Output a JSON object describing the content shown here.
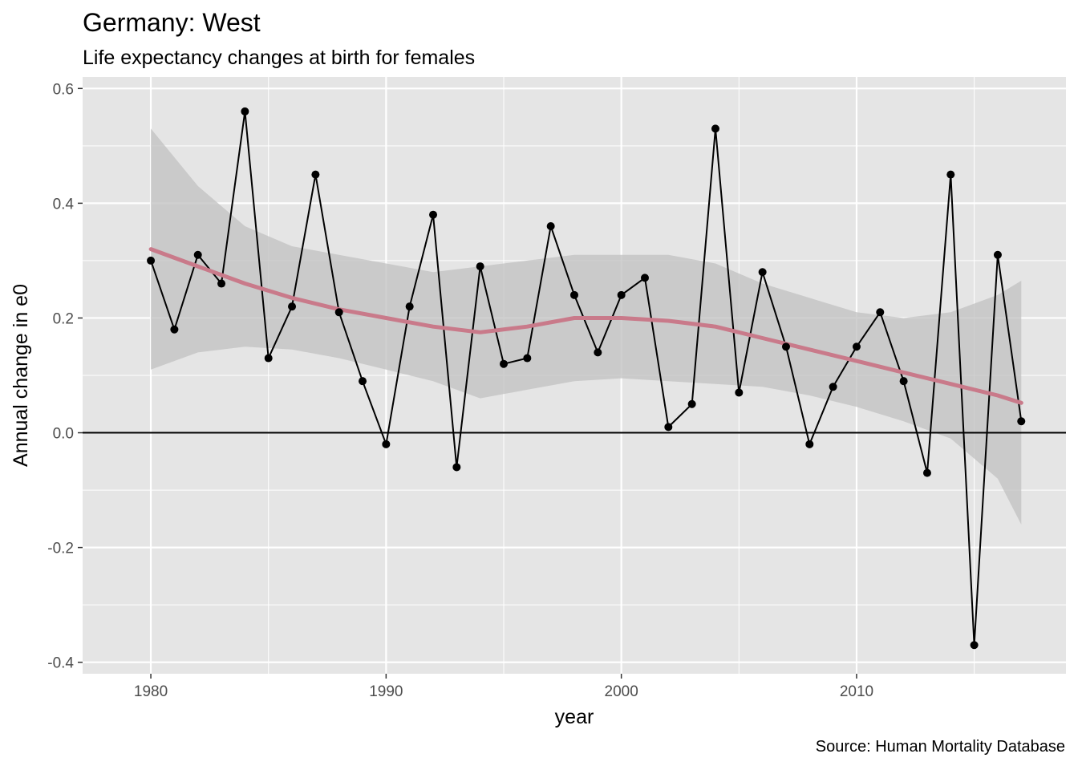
{
  "chart_data": {
    "type": "line",
    "title": "Germany: West",
    "subtitle": "Life expectancy changes at birth for females",
    "caption": "Source: Human Mortality Database",
    "xlabel": "year",
    "ylabel": "Annual change in e0",
    "xlim": [
      1977.1,
      2018.9
    ],
    "ylim": [
      -0.42,
      0.62
    ],
    "x_ticks": [
      1980,
      1990,
      2000,
      2010
    ],
    "x_tick_labels": [
      "1980",
      "1990",
      "2000",
      "2010"
    ],
    "y_ticks": [
      -0.4,
      -0.2,
      0.0,
      0.2,
      0.4,
      0.6
    ],
    "y_tick_labels": [
      "-0.4",
      "-0.2",
      "0.0",
      "0.2",
      "0.4",
      "0.6"
    ],
    "grid": true,
    "reference_line": 0,
    "series": [
      {
        "type": "line+points",
        "color": "#000000",
        "x": [
          1980,
          1981,
          1982,
          1983,
          1984,
          1985,
          1986,
          1987,
          1988,
          1989,
          1990,
          1991,
          1992,
          1993,
          1994,
          1995,
          1996,
          1997,
          1998,
          1999,
          2000,
          2001,
          2002,
          2003,
          2004,
          2005,
          2006,
          2007,
          2008,
          2009,
          2010,
          2011,
          2012,
          2013,
          2014,
          2015,
          2016,
          2017
        ],
        "y": [
          0.3,
          0.18,
          0.31,
          0.26,
          0.56,
          0.13,
          0.22,
          0.45,
          0.21,
          0.09,
          -0.02,
          0.22,
          0.38,
          -0.06,
          0.29,
          0.12,
          0.13,
          0.36,
          0.24,
          0.14,
          0.24,
          0.27,
          0.01,
          0.05,
          0.53,
          0.07,
          0.28,
          0.15,
          -0.02,
          0.08,
          0.15,
          0.21,
          0.09,
          -0.07,
          0.45,
          -0.37,
          0.31,
          0.02
        ]
      },
      {
        "type": "smooth",
        "color": "#c97a8a",
        "band_color": "#c0c0c0",
        "x": [
          1980,
          1982,
          1984,
          1986,
          1988,
          1990,
          1992,
          1994,
          1996,
          1998,
          2000,
          2002,
          2004,
          2006,
          2008,
          2010,
          2012,
          2014,
          2016,
          2017
        ],
        "y": [
          0.32,
          0.29,
          0.26,
          0.235,
          0.215,
          0.2,
          0.185,
          0.175,
          0.185,
          0.2,
          0.2,
          0.195,
          0.185,
          0.165,
          0.145,
          0.125,
          0.105,
          0.085,
          0.065,
          0.052
        ],
        "lower": [
          0.11,
          0.14,
          0.15,
          0.145,
          0.13,
          0.11,
          0.09,
          0.06,
          0.075,
          0.09,
          0.095,
          0.09,
          0.085,
          0.08,
          0.065,
          0.045,
          0.02,
          -0.01,
          -0.08,
          -0.16
        ],
        "upper": [
          0.53,
          0.43,
          0.36,
          0.325,
          0.31,
          0.295,
          0.28,
          0.29,
          0.3,
          0.31,
          0.31,
          0.31,
          0.295,
          0.26,
          0.235,
          0.21,
          0.2,
          0.21,
          0.24,
          0.265
        ]
      }
    ],
    "colors": {
      "panel": "#e5e5e5",
      "grid": "#ffffff",
      "point": "#000000",
      "smooth": "#c97a8a",
      "band": "#c0c0c0"
    }
  }
}
